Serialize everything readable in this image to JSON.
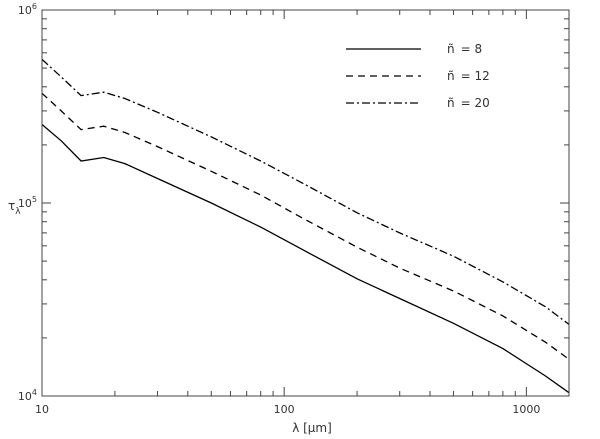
{
  "chart_data": {
    "type": "line",
    "xlabel": "λ  [μm]",
    "ylabel": "τ",
    "ylabel_sub": "λ",
    "x_scale": "log",
    "y_scale": "log",
    "xlim": [
      10,
      1500
    ],
    "ylim": [
      10000,
      1000000
    ],
    "x_tick_labels": [
      "10",
      "100",
      "1000"
    ],
    "y_tick_labels": [
      {
        "base": "10",
        "exp": "4"
      },
      {
        "base": "10",
        "exp": "5"
      },
      {
        "base": "10",
        "exp": "6"
      }
    ],
    "grid": false,
    "legend": {
      "placement": "top-right",
      "prefix": "ñ",
      "entries": [
        "= 8",
        "= 12",
        "= 20"
      ]
    },
    "series": [
      {
        "name": "ñ = 8",
        "dash": "solid",
        "x": [
          10,
          12,
          14.5,
          18,
          22,
          30,
          50,
          80,
          120,
          200,
          300,
          500,
          800,
          1200,
          1500
        ],
        "y": [
          255000,
          210000,
          165000,
          172000,
          160000,
          134000,
          100000,
          75000,
          57000,
          40500,
          32000,
          23800,
          17600,
          12700,
          10400
        ]
      },
      {
        "name": "ñ = 12",
        "dash": "dashed",
        "x": [
          10,
          12,
          14.5,
          18,
          22,
          30,
          50,
          80,
          120,
          200,
          300,
          500,
          800,
          1200,
          1500
        ],
        "y": [
          370000,
          300000,
          240000,
          250000,
          232000,
          196000,
          146000,
          110000,
          83000,
          59000,
          46000,
          35000,
          26000,
          19000,
          15500
        ]
      },
      {
        "name": "ñ = 20",
        "dash": "dashdot",
        "x": [
          10,
          12,
          14.5,
          18,
          22,
          30,
          50,
          80,
          120,
          200,
          300,
          500,
          800,
          1200,
          1500
        ],
        "y": [
          555000,
          450000,
          360000,
          375000,
          348000,
          295000,
          220000,
          165000,
          126000,
          89000,
          70000,
          53000,
          39000,
          29000,
          23500
        ]
      }
    ],
    "colors": {
      "line": "#000000",
      "axis": "#444444",
      "text": "#333333"
    }
  }
}
